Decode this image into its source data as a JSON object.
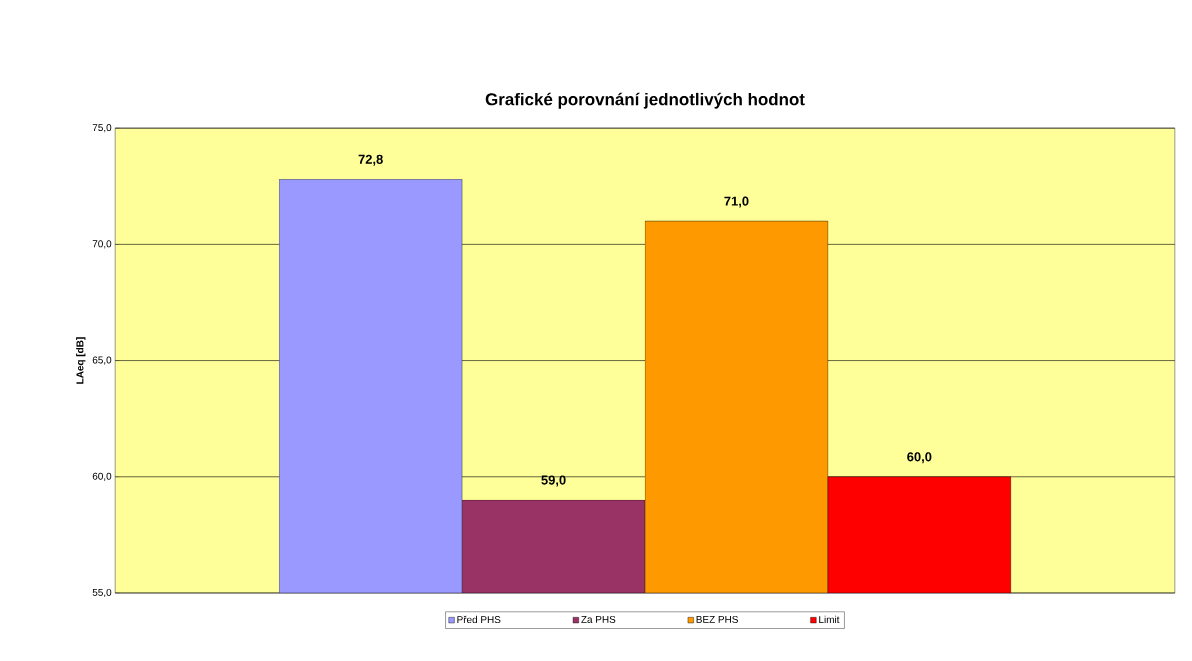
{
  "chart_data": {
    "type": "bar",
    "title": "Grafické porovnání jednotlivých hodnot",
    "ylabel": "LAeq [dB]",
    "categories": [
      null
    ],
    "series": [
      {
        "name": "Před PHS",
        "color": "#9999ff",
        "values": [
          72.8
        ],
        "value_labels": [
          "72,8"
        ]
      },
      {
        "name": "Za PHS",
        "color": "#993366",
        "values": [
          59.0
        ],
        "value_labels": [
          "59,0"
        ]
      },
      {
        "name": "BEZ PHS",
        "color": "#ff9900",
        "values": [
          71.0
        ],
        "value_labels": [
          "71,0"
        ]
      },
      {
        "name": "Limit",
        "color": "#ff0000",
        "values": [
          60.0
        ],
        "value_labels": [
          "60,0"
        ]
      }
    ],
    "ylim": [
      55,
      75
    ],
    "yticks": [
      {
        "value": 55,
        "label": "55,0"
      },
      {
        "value": 60,
        "label": "60,0"
      },
      {
        "value": 65,
        "label": "65,0"
      },
      {
        "value": 70,
        "label": "70,0"
      },
      {
        "value": 75,
        "label": "75,0"
      }
    ],
    "grid": "y",
    "legend": "bottom"
  }
}
